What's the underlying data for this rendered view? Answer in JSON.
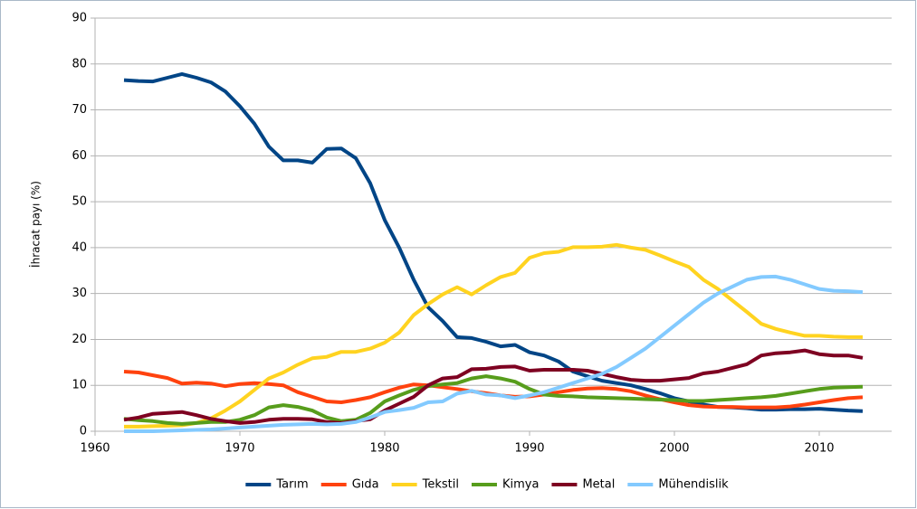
{
  "chart_data": {
    "type": "line",
    "y_label": "İhracat payı (%)",
    "x": [
      1962,
      1963,
      1964,
      1965,
      1966,
      1967,
      1968,
      1969,
      1970,
      1971,
      1972,
      1973,
      1974,
      1975,
      1976,
      1977,
      1978,
      1979,
      1980,
      1981,
      1982,
      1983,
      1984,
      1985,
      1986,
      1987,
      1988,
      1989,
      1990,
      1991,
      1992,
      1993,
      1994,
      1995,
      1996,
      1997,
      1998,
      1999,
      2000,
      2001,
      2002,
      2003,
      2004,
      2005,
      2006,
      2007,
      2008,
      2009,
      2010,
      2011,
      2012,
      2013
    ],
    "xlim": [
      1960,
      2015
    ],
    "xticks": [
      1960,
      1970,
      1980,
      1990,
      2000,
      2010
    ],
    "ylim": [
      0,
      90
    ],
    "yticks": [
      0,
      10,
      20,
      30,
      40,
      50,
      60,
      70,
      80,
      90
    ],
    "grid": true,
    "legend": "bottom",
    "series": [
      {
        "name": "Tarım",
        "color": "#004586",
        "values": [
          76.5,
          76.3,
          76.2,
          77,
          77.8,
          77,
          76,
          74,
          70.8,
          67,
          62,
          59,
          59,
          58.5,
          61.5,
          61.6,
          59.5,
          54,
          46,
          40,
          33,
          27,
          24,
          20.5,
          20.3,
          19.5,
          18.5,
          18.8,
          17.2,
          16.5,
          15.2,
          13,
          12,
          11,
          10.5,
          10,
          9.2,
          8.3,
          7.2,
          6.5,
          5.8,
          5.3,
          5.2,
          5,
          4.7,
          4.7,
          4.8,
          4.8,
          4.9,
          4.7,
          4.5,
          4.4
        ]
      },
      {
        "name": "Gıda",
        "color": "#ff420e",
        "values": [
          13,
          12.8,
          12.2,
          11.6,
          10.4,
          10.6,
          10.4,
          9.8,
          10.3,
          10.5,
          10.3,
          10,
          8.5,
          7.5,
          6.5,
          6.3,
          6.8,
          7.4,
          8.5,
          9.5,
          10.2,
          10,
          9.6,
          9.2,
          8.7,
          8.3,
          7.8,
          7.5,
          7.6,
          8,
          8.5,
          9,
          9.3,
          9.4,
          9.2,
          8.7,
          7.8,
          7,
          6.3,
          5.7,
          5.4,
          5.3,
          5.3,
          5.2,
          5.2,
          5.2,
          5.4,
          5.8,
          6.3,
          6.8,
          7.2,
          7.4
        ]
      },
      {
        "name": "Tekstil",
        "color": "#ffd320",
        "values": [
          1,
          1,
          1.1,
          1.2,
          1.3,
          1.8,
          2.8,
          4.5,
          6.5,
          9,
          11.5,
          12.8,
          14.5,
          15.9,
          16.2,
          17.3,
          17.3,
          18,
          19.3,
          21.5,
          25.3,
          27.7,
          29.8,
          31.4,
          29.8,
          31.8,
          33.6,
          34.5,
          37.8,
          38.8,
          39.1,
          40.1,
          40.1,
          40.2,
          40.6,
          40,
          39.5,
          38.3,
          37,
          35.8,
          33,
          31,
          28.5,
          26,
          23.4,
          22.3,
          21.5,
          20.8,
          20.8,
          20.6,
          20.5,
          20.5
        ]
      },
      {
        "name": "Kimya",
        "color": "#579d1c",
        "values": [
          2.7,
          2.4,
          2.2,
          1.8,
          1.6,
          1.8,
          2,
          2,
          2.5,
          3.5,
          5.2,
          5.7,
          5.3,
          4.5,
          3,
          2.2,
          2.5,
          4,
          6.5,
          7.8,
          9,
          9.8,
          10.2,
          10.5,
          11.5,
          12,
          11.5,
          10.8,
          9.2,
          8,
          7.7,
          7.6,
          7.4,
          7.3,
          7.2,
          7.1,
          7,
          6.9,
          6.8,
          6.6,
          6.6,
          6.8,
          7,
          7.2,
          7.4,
          7.7,
          8.2,
          8.7,
          9.2,
          9.5,
          9.6,
          9.7
        ]
      },
      {
        "name": "Metal",
        "color": "#7e0021",
        "values": [
          2.5,
          3,
          3.8,
          4,
          4.2,
          3.5,
          2.7,
          2.2,
          1.8,
          2,
          2.5,
          2.7,
          2.7,
          2.6,
          2,
          1.8,
          2.2,
          2.6,
          4.5,
          6,
          7.5,
          10,
          11.5,
          11.8,
          13.5,
          13.6,
          14,
          14.1,
          13.2,
          13.4,
          13.4,
          13.4,
          13.2,
          12.5,
          11.8,
          11.2,
          11,
          11,
          11.3,
          11.6,
          12.6,
          13,
          13.8,
          14.6,
          16.5,
          17,
          17.2,
          17.6,
          16.8,
          16.5,
          16.5,
          16
        ]
      },
      {
        "name": "Mühendislik",
        "color": "#83caff",
        "values": [
          0,
          0,
          0,
          0.1,
          0.2,
          0.3,
          0.4,
          0.6,
          0.8,
          1,
          1.2,
          1.4,
          1.5,
          1.6,
          1.5,
          1.6,
          2,
          3,
          4.2,
          4.6,
          5.1,
          6.3,
          6.5,
          8.2,
          8.8,
          8,
          7.8,
          7.2,
          7.8,
          8.5,
          9.5,
          10.5,
          11.5,
          12.5,
          14,
          16,
          18,
          20.5,
          23,
          25.5,
          28,
          30,
          31.5,
          33,
          33.6,
          33.7,
          33,
          32,
          31,
          30.6,
          30.5,
          30.3
        ]
      }
    ]
  }
}
